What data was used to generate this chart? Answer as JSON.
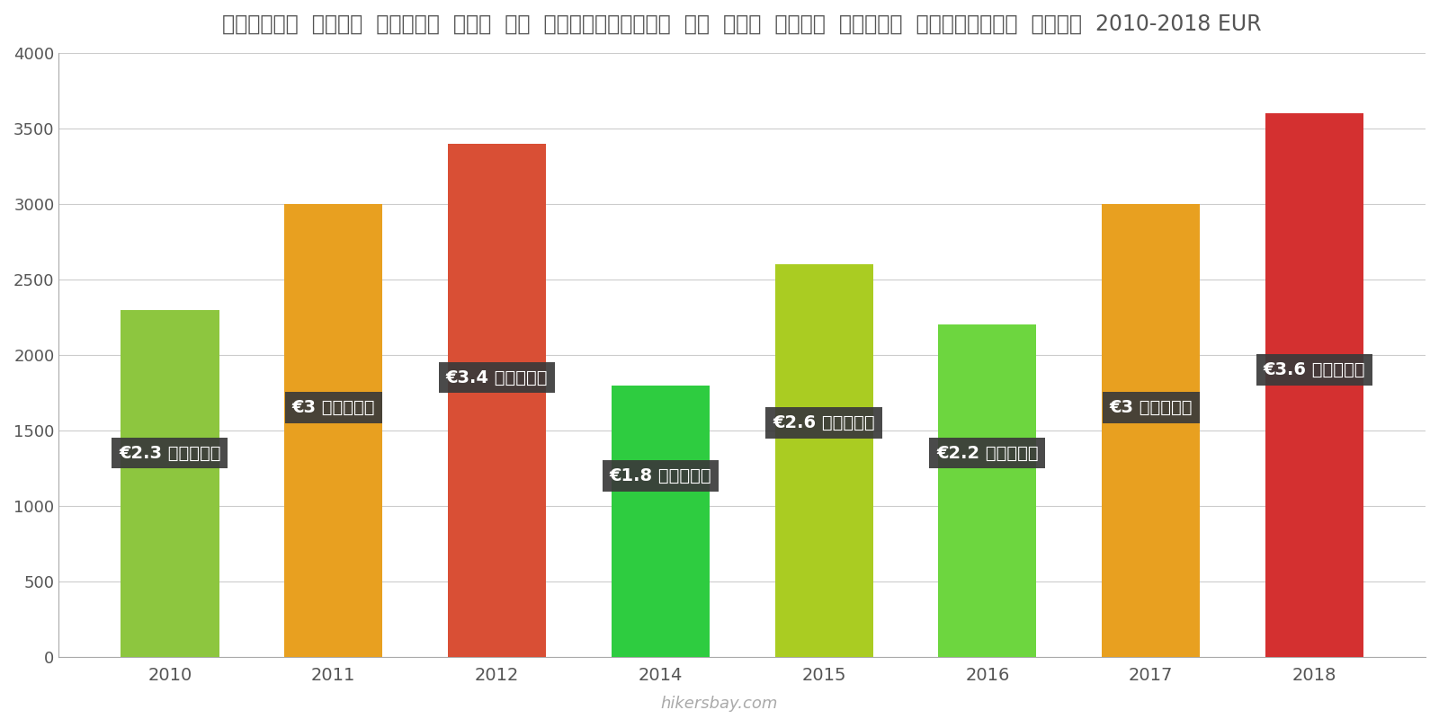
{
  "years": [
    2010,
    2011,
    2012,
    2014,
    2015,
    2016,
    2017,
    2018
  ],
  "values": [
    2300,
    3000,
    3400,
    1800,
    2600,
    2200,
    3000,
    3600
  ],
  "bar_colors": [
    "#8dc63f",
    "#e8a020",
    "#d94f35",
    "#2ecc40",
    "#aacc22",
    "#6dd63f",
    "#e8a020",
    "#d43030"
  ],
  "labels": [
    "€2.3 हज़ार",
    "€3 हज़ार",
    "€3.4 हज़ार",
    "€1.8 हज़ार",
    "€2.6 हज़ार",
    "€2.2 हज़ार",
    "€3 हज़ार",
    "€3.6 हज़ार"
  ],
  "label_y_positions": [
    1350,
    1650,
    1850,
    1200,
    1550,
    1350,
    1650,
    1900
  ],
  "title": "माल्टा  सिटी  सेंटर  में  एक  अपार्टमेंट  के  लिए  कीमत  प्रति  स्क्वायर  मीटर  2010-2018 EUR",
  "ylim": [
    0,
    4000
  ],
  "yticks": [
    0,
    500,
    1000,
    1500,
    2000,
    2500,
    3000,
    3500,
    4000
  ],
  "background_color": "#ffffff",
  "watermark": "hikersbay.com",
  "label_box_color": "#3a3a3a",
  "label_text_color": "#ffffff"
}
